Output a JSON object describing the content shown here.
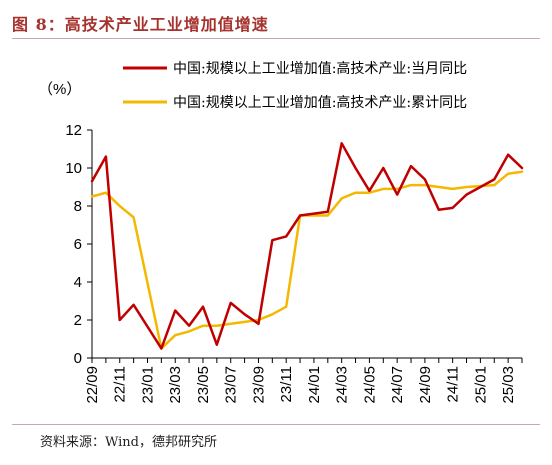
{
  "header": {
    "title": "图 8：高技术产业工业增加值增速"
  },
  "footer": {
    "source": "资料来源：Wind，德邦研究所"
  },
  "chart_data": {
    "type": "line",
    "title": "图 8：高技术产业工业增加值增速",
    "ylabel": "（%）",
    "xlabel": "",
    "ylim": [
      0,
      12
    ],
    "yticks": [
      0,
      2,
      4,
      6,
      8,
      10,
      12
    ],
    "grid": false,
    "legend_position": "top",
    "x": [
      "22/09",
      "22/10",
      "22/11",
      "22/12",
      "23/01",
      "23/02",
      "23/03",
      "23/04",
      "23/05",
      "23/06",
      "23/07",
      "23/08",
      "23/09",
      "23/10",
      "23/11",
      "23/12",
      "24/01",
      "24/02",
      "24/03",
      "24/04",
      "24/05",
      "24/06",
      "24/07",
      "24/08",
      "24/09",
      "24/10",
      "24/11",
      "24/12",
      "25/01",
      "25/02",
      "25/03",
      "25/04"
    ],
    "xtick_labels": [
      "22/09",
      "22/11",
      "23/01",
      "23/03",
      "23/05",
      "23/07",
      "23/09",
      "23/11",
      "24/01",
      "24/03",
      "24/05",
      "24/07",
      "24/09",
      "24/11",
      "25/01",
      "25/03"
    ],
    "series": [
      {
        "name": "中国:规模以上工业增加值:高技术产业:当月同比",
        "color": "#c00000",
        "values": [
          9.3,
          10.6,
          2.0,
          2.8,
          null,
          0.5,
          2.5,
          1.7,
          2.7,
          0.7,
          2.9,
          2.3,
          1.8,
          6.2,
          6.4,
          7.5,
          null,
          7.7,
          11.3,
          10.0,
          8.8,
          10.0,
          8.6,
          10.1,
          9.4,
          7.8,
          7.9,
          8.6,
          null,
          9.4,
          10.7,
          10.0
        ]
      },
      {
        "name": "中国:规模以上工业增加值:高技术产业:累计同比",
        "color": "#f5b800",
        "values": [
          8.5,
          8.7,
          8.0,
          7.4,
          null,
          0.5,
          1.2,
          1.4,
          1.7,
          1.7,
          1.8,
          1.9,
          2.0,
          2.3,
          2.7,
          7.5,
          null,
          7.5,
          8.4,
          8.7,
          8.7,
          8.9,
          8.9,
          9.1,
          9.1,
          9.0,
          8.9,
          9.0,
          null,
          9.1,
          9.7,
          9.8
        ]
      }
    ]
  }
}
